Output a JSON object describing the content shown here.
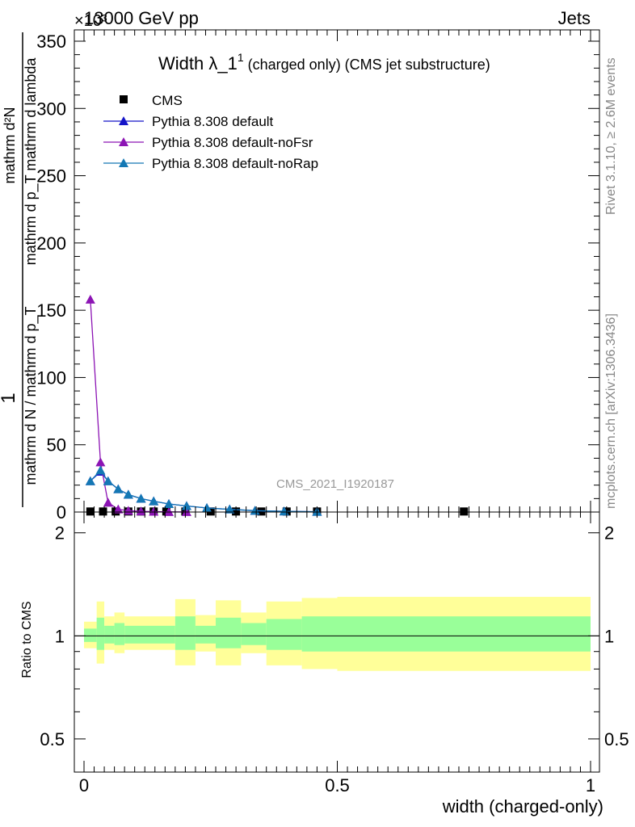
{
  "header": {
    "left_label": "13000 GeV pp",
    "right_label": "Jets",
    "exponent_label": "×10³"
  },
  "side": {
    "rivet": "Rivet 3.1.10, ≥ 2.6M events",
    "mcplots": "mcplots.cern.ch [arXiv:1306.3436]"
  },
  "main": {
    "title_main": "Width λ_1",
    "title_sup": "1",
    "title_sub": " (charged only) (CMS jet substructure)",
    "watermark": "CMS_2021_I1920187",
    "ylabel_numerator": "mathrm d²N",
    "ylabel_denominator": "mathrm d p_T mathrm d lambda",
    "ylabel_prefix_num": "1",
    "ylabel_prefix_den": "mathrm d N / mathrm d p_T",
    "ytick_labels": [
      "0",
      "50",
      "100",
      "150",
      "200",
      "250",
      "300",
      "350"
    ]
  },
  "ratio": {
    "ylabel": "Ratio to CMS",
    "ytick_labels": [
      "0.5",
      "1",
      "2"
    ]
  },
  "xaxis": {
    "label": "width (charged-only)",
    "tick_labels": [
      "0",
      "0.5",
      "1"
    ]
  },
  "legend": {
    "entries": [
      "CMS",
      "Pythia 8.308 default",
      "Pythia 8.308 default-noFsr",
      "Pythia 8.308 default-noRap"
    ]
  },
  "colors": {
    "cms": "#000000",
    "default": "#1414c8",
    "noFsr": "#8c14b4",
    "noRap": "#1478b4",
    "band_outer": "#ffff99",
    "band_inner": "#99ff99"
  },
  "chart_data": [
    {
      "type": "line",
      "xlim": [
        0,
        1
      ],
      "ylim": [
        0,
        350
      ],
      "y_scale_factor": 1000,
      "grid": false,
      "legend_position": "top-left",
      "series": [
        {
          "name": "CMS",
          "marker": "square",
          "x": [
            0.0125,
            0.0375,
            0.0625,
            0.0875,
            0.1125,
            0.1375,
            0.1625,
            0.2,
            0.25,
            0.3,
            0.35,
            0.4,
            0.46,
            0.75
          ],
          "y": [
            0.4,
            0.4,
            0.4,
            0.4,
            0.4,
            0.4,
            0.4,
            0.4,
            0.4,
            0.4,
            0.4,
            0.4,
            0.4,
            0.4
          ]
        },
        {
          "name": "Pythia 8.308 default",
          "marker": "triangle",
          "x": [
            0.0125,
            0.0325,
            0.0475,
            0.0675,
            0.0875,
            0.1125,
            0.1375,
            0.1675,
            0.2025,
            0.2425,
            0.2875,
            0.3375,
            0.395,
            0.46
          ],
          "y": [
            23,
            30,
            23,
            17,
            13,
            10,
            8,
            6,
            4.5,
            3,
            2,
            1,
            0.5,
            0.2
          ]
        },
        {
          "name": "Pythia 8.308 default-noFsr",
          "marker": "triangle",
          "x": [
            0.0125,
            0.0325,
            0.0475,
            0.0675,
            0.0875,
            0.1125,
            0.1375,
            0.1675,
            0.2025
          ],
          "y": [
            158,
            37,
            7,
            2,
            1,
            0.5,
            0.3,
            0.1,
            0.05
          ]
        },
        {
          "name": "Pythia 8.308 default-noRap",
          "marker": "triangle",
          "x": [
            0.0125,
            0.0325,
            0.0475,
            0.0675,
            0.0875,
            0.1125,
            0.1375,
            0.1675,
            0.2025,
            0.2425,
            0.2875,
            0.3375,
            0.395,
            0.46
          ],
          "y": [
            23,
            31,
            23,
            17,
            13,
            10,
            8,
            6,
            4.5,
            3,
            2,
            1,
            0.5,
            0.2
          ]
        }
      ]
    },
    {
      "type": "area",
      "title": "",
      "ylabel": "Ratio to CMS",
      "y_scale": "log",
      "ylim": [
        0.4,
        2.3
      ],
      "reference_line": 1,
      "bins": [
        {
          "x0": 0.0,
          "x1": 0.025,
          "inner": [
            0.96,
            1.05
          ],
          "outer": [
            0.92,
            1.1
          ]
        },
        {
          "x0": 0.025,
          "x1": 0.04,
          "inner": [
            0.91,
            1.13
          ],
          "outer": [
            0.83,
            1.26
          ]
        },
        {
          "x0": 0.04,
          "x1": 0.06,
          "inner": [
            0.95,
            1.07
          ],
          "outer": [
            0.91,
            1.14
          ]
        },
        {
          "x0": 0.06,
          "x1": 0.08,
          "inner": [
            0.94,
            1.09
          ],
          "outer": [
            0.89,
            1.17
          ]
        },
        {
          "x0": 0.08,
          "x1": 0.18,
          "inner": [
            0.95,
            1.07
          ],
          "outer": [
            0.91,
            1.14
          ]
        },
        {
          "x0": 0.18,
          "x1": 0.22,
          "inner": [
            0.91,
            1.14
          ],
          "outer": [
            0.82,
            1.28
          ]
        },
        {
          "x0": 0.22,
          "x1": 0.26,
          "inner": [
            0.95,
            1.07
          ],
          "outer": [
            0.9,
            1.15
          ]
        },
        {
          "x0": 0.26,
          "x1": 0.31,
          "inner": [
            0.92,
            1.13
          ],
          "outer": [
            0.82,
            1.27
          ]
        },
        {
          "x0": 0.31,
          "x1": 0.36,
          "inner": [
            0.94,
            1.09
          ],
          "outer": [
            0.89,
            1.17
          ]
        },
        {
          "x0": 0.36,
          "x1": 0.43,
          "inner": [
            0.91,
            1.12
          ],
          "outer": [
            0.82,
            1.26
          ]
        },
        {
          "x0": 0.43,
          "x1": 0.5,
          "inner": [
            0.9,
            1.14
          ],
          "outer": [
            0.8,
            1.29
          ]
        },
        {
          "x0": 0.5,
          "x1": 1.0,
          "inner": [
            0.9,
            1.14
          ],
          "outer": [
            0.79,
            1.3
          ]
        }
      ]
    }
  ]
}
